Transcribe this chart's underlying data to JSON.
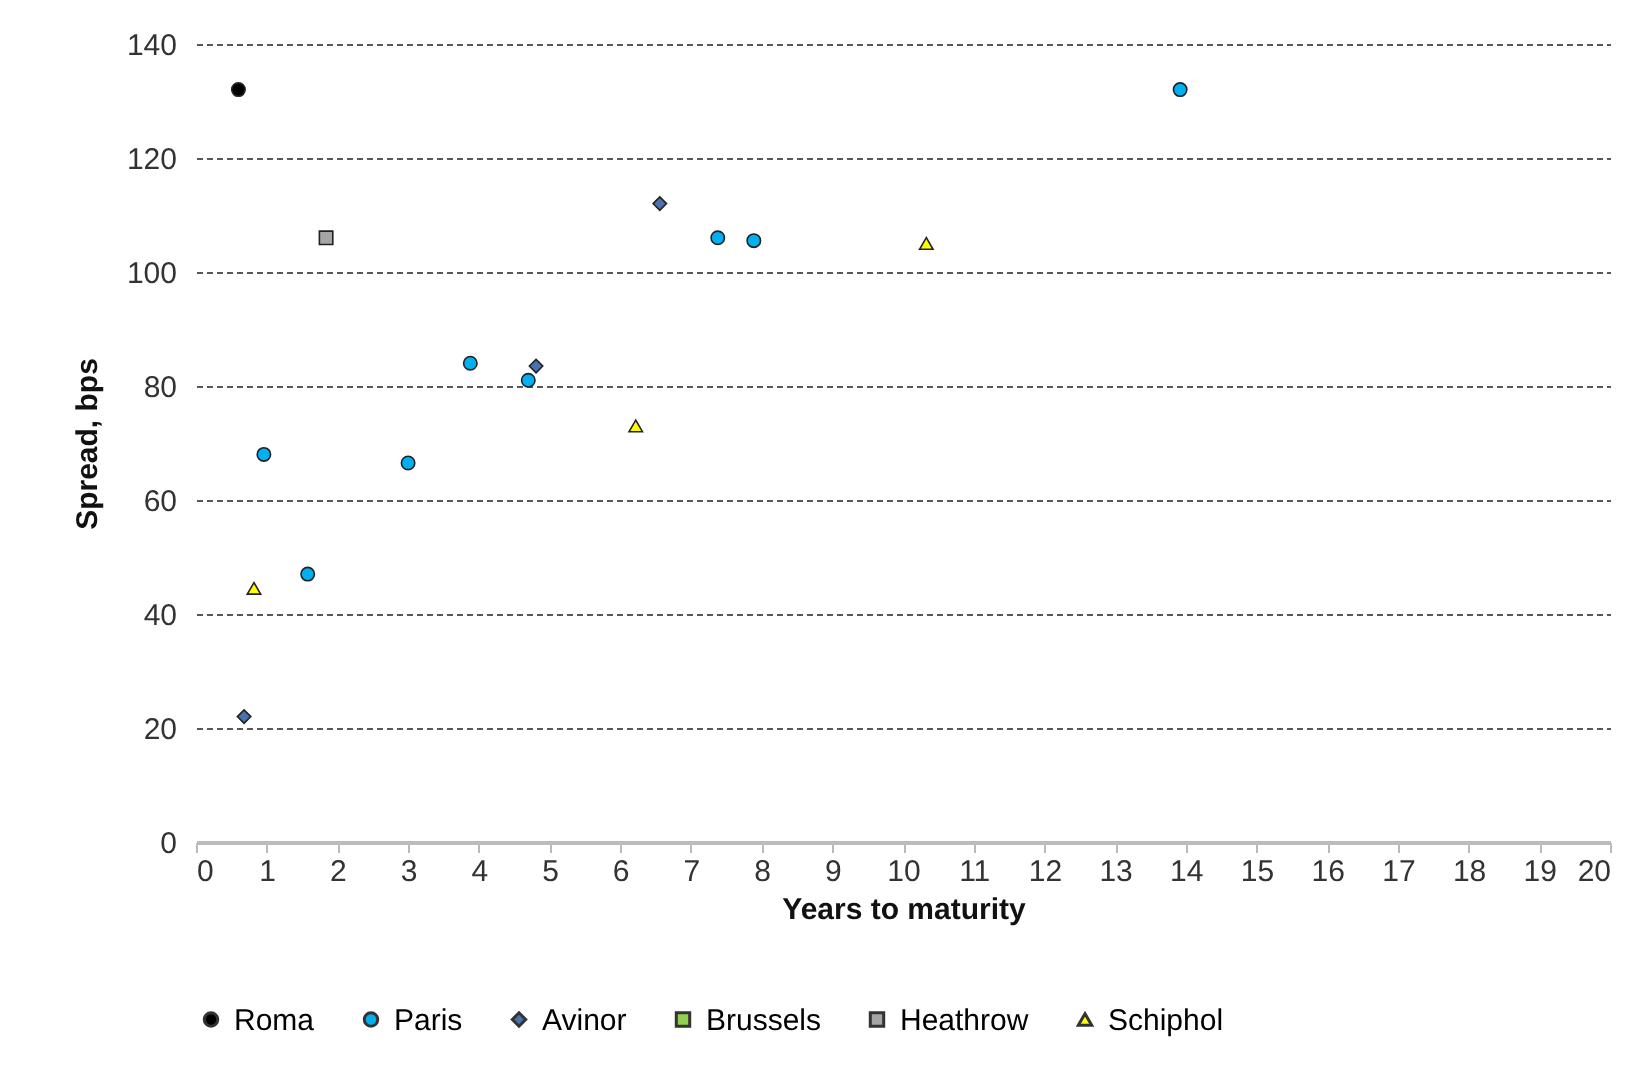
{
  "chart_data": {
    "type": "scatter",
    "xlabel": "Years to maturity",
    "ylabel": "Spread, bps",
    "xlim": [
      0,
      20
    ],
    "xticks": [
      0,
      1,
      2,
      3,
      4,
      5,
      6,
      7,
      8,
      9,
      10,
      11,
      12,
      13,
      14,
      15,
      16,
      17,
      18,
      19,
      20
    ],
    "ylim": [
      0,
      140
    ],
    "yticks": [
      0,
      20,
      40,
      60,
      80,
      100,
      120,
      140
    ],
    "grid": "y",
    "legend": "bottom",
    "series": [
      {
        "name": "Roma",
        "color": "#000000",
        "marker": "circle",
        "x": [
          0.6
        ],
        "values": [
          132
        ]
      },
      {
        "name": "Paris",
        "color": "#00b0f0",
        "marker": "circle",
        "x": [
          0.96,
          1.58,
          3.0,
          3.88,
          4.7,
          7.38,
          7.89,
          13.92
        ],
        "values": [
          68,
          47,
          66.5,
          84,
          81,
          106,
          105.5,
          132
        ]
      },
      {
        "name": "Avinor",
        "color": "#4a72b0",
        "marker": "diamond",
        "x": [
          0.68,
          4.81,
          6.56
        ],
        "values": [
          22,
          83.5,
          112
        ]
      },
      {
        "name": "Brussels",
        "color": "#92d050",
        "marker": "square"
      },
      {
        "name": "Heathrow",
        "color": "#a5a5a5",
        "marker": "square",
        "x": [
          1.84
        ],
        "values": [
          106
        ]
      },
      {
        "name": "Schiphol",
        "color": "#ffff00",
        "marker": "triangle",
        "x": [
          0.82,
          6.22,
          10.33
        ],
        "values": [
          44.5,
          73,
          105
        ]
      }
    ]
  }
}
